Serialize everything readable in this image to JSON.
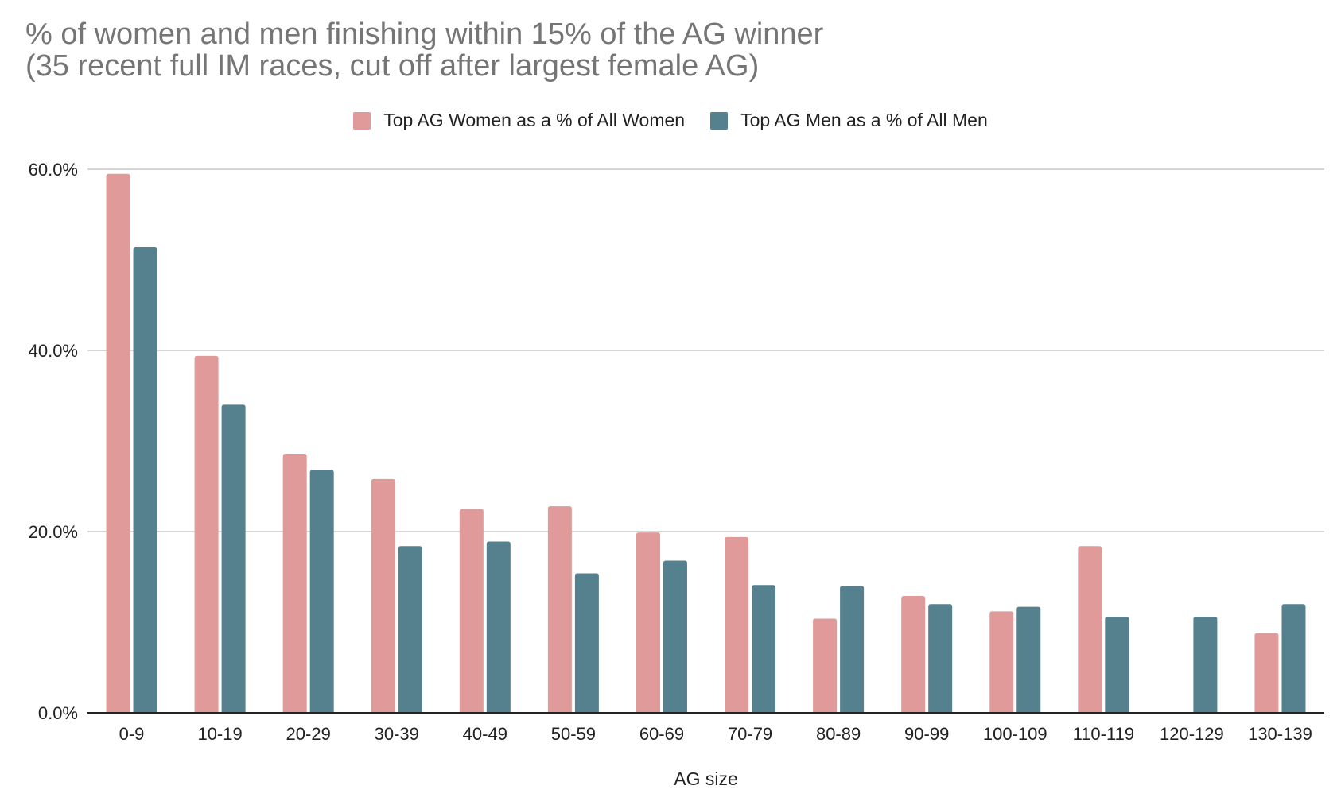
{
  "chart_data": {
    "type": "bar",
    "title": "% of women and men finishing within 15% of the AG winner",
    "subtitle": "(35 recent full IM races, cut off after largest female AG)",
    "xlabel": "AG size",
    "ylabel": "",
    "categories": [
      "0-9",
      "10-19",
      "20-29",
      "30-39",
      "40-49",
      "50-59",
      "60-69",
      "70-79",
      "80-89",
      "90-99",
      "100-109",
      "110-119",
      "120-129",
      "130-139"
    ],
    "series": [
      {
        "name": "Top AG Women as a % of All Women",
        "color": "#e09a9a",
        "values": [
          59.5,
          39.4,
          28.6,
          25.8,
          22.5,
          22.8,
          19.9,
          19.4,
          10.4,
          12.9,
          11.2,
          18.4,
          null,
          8.8
        ]
      },
      {
        "name": "Top AG Men as a % of All Men",
        "color": "#55808d",
        "values": [
          51.4,
          34.0,
          26.8,
          18.4,
          18.9,
          15.4,
          16.8,
          14.1,
          14.0,
          12.0,
          11.7,
          10.6,
          10.6,
          12.0
        ]
      }
    ],
    "ylim": [
      0,
      60
    ],
    "yticks": [
      0,
      20,
      40,
      60
    ],
    "ytick_labels": [
      "0.0%",
      "20.0%",
      "40.0%",
      "60.0%"
    ],
    "grid": true,
    "legend_position": "top-center"
  }
}
